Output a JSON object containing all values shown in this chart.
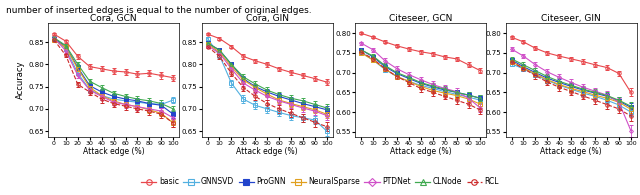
{
  "x": [
    0,
    10,
    20,
    30,
    40,
    50,
    60,
    70,
    80,
    90,
    100
  ],
  "subplots": [
    {
      "title": "Cora, GCN",
      "ylim": [
        0.638,
        0.892
      ],
      "yticks": [
        0.65,
        0.7,
        0.75,
        0.8,
        0.85
      ],
      "show_ylabel": true,
      "series": {
        "basic": {
          "y": [
            0.868,
            0.852,
            0.818,
            0.795,
            0.79,
            0.785,
            0.783,
            0.778,
            0.78,
            0.775,
            0.77
          ],
          "yerr": [
            0.003,
            0.003,
            0.005,
            0.006,
            0.006,
            0.006,
            0.006,
            0.006,
            0.007,
            0.007,
            0.007
          ]
        },
        "GNNSVD": {
          "y": [
            0.858,
            0.835,
            0.78,
            0.743,
            0.73,
            0.722,
            0.718,
            0.715,
            0.712,
            0.71,
            0.72
          ],
          "yerr": [
            0.003,
            0.004,
            0.005,
            0.006,
            0.006,
            0.006,
            0.006,
            0.006,
            0.006,
            0.006,
            0.007
          ]
        },
        "ProGNN": {
          "y": [
            0.858,
            0.84,
            0.793,
            0.752,
            0.738,
            0.728,
            0.722,
            0.718,
            0.712,
            0.708,
            0.688
          ],
          "yerr": [
            0.003,
            0.004,
            0.005,
            0.006,
            0.006,
            0.006,
            0.006,
            0.006,
            0.007,
            0.007,
            0.008
          ]
        },
        "NeuralSparse": {
          "y": [
            0.855,
            0.838,
            0.79,
            0.748,
            0.73,
            0.718,
            0.71,
            0.705,
            0.698,
            0.69,
            0.668
          ],
          "yerr": [
            0.003,
            0.004,
            0.005,
            0.006,
            0.006,
            0.006,
            0.006,
            0.006,
            0.007,
            0.007,
            0.008
          ]
        },
        "PTDNet": {
          "y": [
            0.86,
            0.83,
            0.775,
            0.742,
            0.728,
            0.715,
            0.71,
            0.705,
            0.7,
            0.695,
            0.68
          ],
          "yerr": [
            0.003,
            0.004,
            0.006,
            0.007,
            0.007,
            0.007,
            0.007,
            0.007,
            0.007,
            0.007,
            0.008
          ]
        },
        "CLNode": {
          "y": [
            0.86,
            0.842,
            0.8,
            0.762,
            0.748,
            0.735,
            0.728,
            0.722,
            0.718,
            0.712,
            0.7
          ],
          "yerr": [
            0.003,
            0.004,
            0.005,
            0.006,
            0.006,
            0.006,
            0.006,
            0.006,
            0.007,
            0.007,
            0.007
          ]
        },
        "RCL": {
          "y": [
            0.855,
            0.82,
            0.755,
            0.738,
            0.722,
            0.712,
            0.706,
            0.7,
            0.695,
            0.688,
            0.668
          ],
          "yerr": [
            0.003,
            0.004,
            0.006,
            0.007,
            0.008,
            0.008,
            0.008,
            0.008,
            0.008,
            0.008,
            0.009
          ]
        }
      }
    },
    {
      "title": "Cora, GIN",
      "ylim": [
        0.638,
        0.892
      ],
      "yticks": [
        0.65,
        0.7,
        0.75,
        0.8,
        0.85
      ],
      "show_ylabel": false,
      "series": {
        "basic": {
          "y": [
            0.868,
            0.858,
            0.84,
            0.818,
            0.808,
            0.8,
            0.79,
            0.782,
            0.775,
            0.768,
            0.76
          ],
          "yerr": [
            0.003,
            0.003,
            0.004,
            0.005,
            0.005,
            0.005,
            0.005,
            0.005,
            0.006,
            0.006,
            0.007
          ]
        },
        "GNNSVD": {
          "y": [
            0.858,
            0.82,
            0.758,
            0.722,
            0.708,
            0.7,
            0.692,
            0.685,
            0.68,
            0.675,
            0.65
          ],
          "yerr": [
            0.003,
            0.005,
            0.008,
            0.009,
            0.009,
            0.009,
            0.009,
            0.009,
            0.009,
            0.009,
            0.01
          ]
        },
        "ProGNN": {
          "y": [
            0.848,
            0.832,
            0.8,
            0.768,
            0.75,
            0.738,
            0.728,
            0.72,
            0.712,
            0.705,
            0.698
          ],
          "yerr": [
            0.003,
            0.004,
            0.005,
            0.006,
            0.006,
            0.007,
            0.007,
            0.007,
            0.007,
            0.007,
            0.008
          ]
        },
        "NeuralSparse": {
          "y": [
            0.845,
            0.828,
            0.795,
            0.765,
            0.748,
            0.733,
            0.72,
            0.712,
            0.705,
            0.698,
            0.688
          ],
          "yerr": [
            0.003,
            0.004,
            0.005,
            0.006,
            0.007,
            0.007,
            0.007,
            0.007,
            0.007,
            0.007,
            0.008
          ]
        },
        "PTDNet": {
          "y": [
            0.842,
            0.825,
            0.79,
            0.758,
            0.742,
            0.728,
            0.718,
            0.71,
            0.702,
            0.695,
            0.685
          ],
          "yerr": [
            0.003,
            0.004,
            0.006,
            0.007,
            0.007,
            0.007,
            0.007,
            0.008,
            0.008,
            0.008,
            0.009
          ]
        },
        "CLNode": {
          "y": [
            0.848,
            0.832,
            0.8,
            0.772,
            0.756,
            0.742,
            0.732,
            0.724,
            0.718,
            0.71,
            0.702
          ],
          "yerr": [
            0.003,
            0.004,
            0.005,
            0.006,
            0.006,
            0.007,
            0.007,
            0.007,
            0.007,
            0.007,
            0.008
          ]
        },
        "RCL": {
          "y": [
            0.84,
            0.818,
            0.78,
            0.748,
            0.728,
            0.712,
            0.7,
            0.69,
            0.68,
            0.67,
            0.66
          ],
          "yerr": [
            0.003,
            0.005,
            0.007,
            0.008,
            0.009,
            0.009,
            0.009,
            0.009,
            0.009,
            0.01,
            0.01
          ]
        }
      }
    },
    {
      "title": "Citeseer, GCN",
      "ylim": [
        0.538,
        0.825
      ],
      "yticks": [
        0.55,
        0.6,
        0.65,
        0.7,
        0.75,
        0.8
      ],
      "show_ylabel": false,
      "series": {
        "basic": {
          "y": [
            0.8,
            0.79,
            0.778,
            0.768,
            0.76,
            0.753,
            0.748,
            0.74,
            0.735,
            0.72,
            0.705
          ],
          "yerr": [
            0.003,
            0.003,
            0.004,
            0.004,
            0.004,
            0.005,
            0.005,
            0.005,
            0.005,
            0.006,
            0.006
          ]
        },
        "GNNSVD": {
          "y": [
            0.752,
            0.732,
            0.708,
            0.69,
            0.678,
            0.668,
            0.66,
            0.652,
            0.645,
            0.638,
            0.63
          ],
          "yerr": [
            0.004,
            0.005,
            0.006,
            0.006,
            0.007,
            0.007,
            0.007,
            0.007,
            0.007,
            0.007,
            0.008
          ]
        },
        "ProGNN": {
          "y": [
            0.758,
            0.74,
            0.715,
            0.698,
            0.685,
            0.673,
            0.664,
            0.656,
            0.65,
            0.643,
            0.635
          ],
          "yerr": [
            0.004,
            0.005,
            0.006,
            0.006,
            0.007,
            0.007,
            0.007,
            0.007,
            0.007,
            0.007,
            0.008
          ]
        },
        "NeuralSparse": {
          "y": [
            0.75,
            0.732,
            0.71,
            0.69,
            0.678,
            0.665,
            0.655,
            0.648,
            0.642,
            0.633,
            0.62
          ],
          "yerr": [
            0.004,
            0.005,
            0.006,
            0.006,
            0.007,
            0.007,
            0.007,
            0.007,
            0.007,
            0.008,
            0.009
          ]
        },
        "PTDNet": {
          "y": [
            0.775,
            0.758,
            0.73,
            0.71,
            0.695,
            0.682,
            0.67,
            0.66,
            0.652,
            0.635,
            0.61
          ],
          "yerr": [
            0.004,
            0.005,
            0.006,
            0.007,
            0.007,
            0.007,
            0.008,
            0.008,
            0.008,
            0.009,
            0.01
          ]
        },
        "CLNode": {
          "y": [
            0.758,
            0.742,
            0.718,
            0.7,
            0.688,
            0.675,
            0.666,
            0.658,
            0.65,
            0.643,
            0.635
          ],
          "yerr": [
            0.004,
            0.005,
            0.006,
            0.006,
            0.007,
            0.007,
            0.007,
            0.007,
            0.007,
            0.007,
            0.008
          ]
        },
        "RCL": {
          "y": [
            0.752,
            0.735,
            0.71,
            0.69,
            0.675,
            0.66,
            0.65,
            0.64,
            0.63,
            0.62,
            0.605
          ],
          "yerr": [
            0.004,
            0.005,
            0.007,
            0.007,
            0.008,
            0.008,
            0.008,
            0.008,
            0.009,
            0.009,
            0.01
          ]
        }
      }
    },
    {
      "title": "Citeseer, GIN",
      "ylim": [
        0.538,
        0.825
      ],
      "yticks": [
        0.55,
        0.6,
        0.65,
        0.7,
        0.75,
        0.8
      ],
      "show_ylabel": false,
      "series": {
        "basic": {
          "y": [
            0.79,
            0.778,
            0.762,
            0.75,
            0.742,
            0.735,
            0.728,
            0.72,
            0.713,
            0.698,
            0.65
          ],
          "yerr": [
            0.004,
            0.004,
            0.005,
            0.005,
            0.005,
            0.005,
            0.006,
            0.006,
            0.006,
            0.007,
            0.01
          ]
        },
        "GNNSVD": {
          "y": [
            0.722,
            0.71,
            0.695,
            0.68,
            0.668,
            0.658,
            0.648,
            0.64,
            0.63,
            0.618,
            0.6
          ],
          "yerr": [
            0.005,
            0.006,
            0.007,
            0.007,
            0.008,
            0.008,
            0.008,
            0.008,
            0.008,
            0.009,
            0.01
          ]
        },
        "ProGNN": {
          "y": [
            0.732,
            0.715,
            0.7,
            0.686,
            0.675,
            0.665,
            0.656,
            0.648,
            0.64,
            0.628,
            0.612
          ],
          "yerr": [
            0.005,
            0.006,
            0.007,
            0.007,
            0.008,
            0.008,
            0.008,
            0.008,
            0.008,
            0.009,
            0.01
          ]
        },
        "NeuralSparse": {
          "y": [
            0.728,
            0.712,
            0.697,
            0.682,
            0.67,
            0.66,
            0.652,
            0.643,
            0.635,
            0.625,
            0.607
          ],
          "yerr": [
            0.005,
            0.006,
            0.007,
            0.007,
            0.008,
            0.008,
            0.008,
            0.008,
            0.009,
            0.009,
            0.01
          ]
        },
        "PTDNet": {
          "y": [
            0.76,
            0.742,
            0.72,
            0.702,
            0.688,
            0.675,
            0.663,
            0.653,
            0.643,
            0.625,
            0.553
          ],
          "yerr": [
            0.005,
            0.006,
            0.007,
            0.008,
            0.008,
            0.009,
            0.009,
            0.009,
            0.01,
            0.011,
            0.015
          ]
        },
        "CLNode": {
          "y": [
            0.735,
            0.72,
            0.705,
            0.69,
            0.678,
            0.668,
            0.658,
            0.65,
            0.642,
            0.63,
            0.615
          ],
          "yerr": [
            0.005,
            0.006,
            0.007,
            0.007,
            0.008,
            0.008,
            0.008,
            0.008,
            0.008,
            0.009,
            0.01
          ]
        },
        "RCL": {
          "y": [
            0.728,
            0.71,
            0.693,
            0.676,
            0.663,
            0.652,
            0.641,
            0.63,
            0.619,
            0.608,
            0.59
          ],
          "yerr": [
            0.005,
            0.007,
            0.008,
            0.008,
            0.009,
            0.009,
            0.009,
            0.01,
            0.01,
            0.01,
            0.012
          ]
        }
      }
    }
  ],
  "methods": [
    "basic",
    "GNNSVD",
    "ProGNN",
    "NeuralSparse",
    "PTDNet",
    "CLNode",
    "RCL"
  ],
  "xlabel": "Attack edge (%)",
  "ylabel": "Accuracy",
  "xticks": [
    0,
    10,
    20,
    30,
    40,
    50,
    60,
    70,
    80,
    90,
    100
  ],
  "top_text": "number of inserted edges is equal to the number of original edges."
}
